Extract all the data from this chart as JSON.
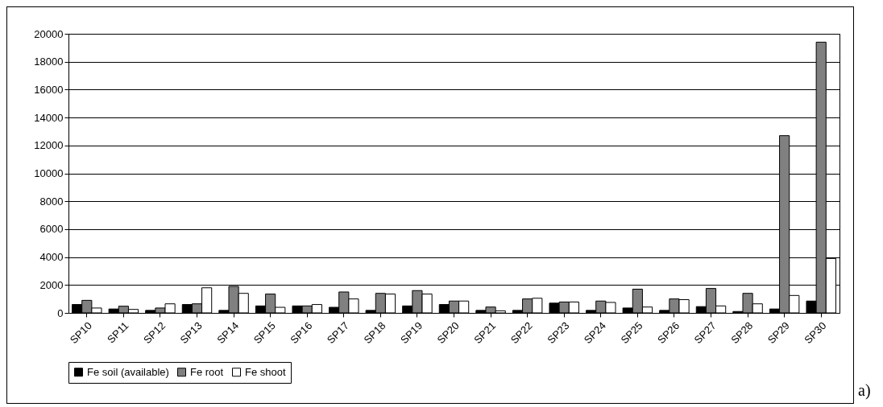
{
  "chart_data": {
    "type": "bar",
    "categories": [
      "SP10",
      "SP11",
      "SP12",
      "SP13",
      "SP14",
      "SP15",
      "SP16",
      "SP17",
      "SP18",
      "SP19",
      "SP20",
      "SP21",
      "SP22",
      "SP23",
      "SP24",
      "SP25",
      "SP26",
      "SP27",
      "SP28",
      "SP29",
      "SP30"
    ],
    "series": [
      {
        "name": "Fe soil (available)",
        "color": "#000000",
        "values": [
          600,
          280,
          180,
          600,
          180,
          500,
          500,
          400,
          180,
          500,
          600,
          180,
          180,
          700,
          180,
          350,
          180,
          450,
          100,
          280,
          850
        ]
      },
      {
        "name": "Fe root",
        "color": "#808080",
        "values": [
          900,
          480,
          350,
          650,
          1900,
          1350,
          500,
          1500,
          1400,
          1600,
          850,
          420,
          1000,
          780,
          850,
          1700,
          1000,
          1750,
          1400,
          12700,
          19400
        ]
      },
      {
        "name": "Fe shoot",
        "color": "#ffffff",
        "values": [
          350,
          250,
          650,
          1800,
          1400,
          400,
          600,
          1000,
          1350,
          1350,
          850,
          150,
          1050,
          780,
          750,
          420,
          950,
          500,
          650,
          1250,
          3900
        ]
      }
    ],
    "ylim": [
      0,
      20000
    ],
    "yticks": [
      0,
      2000,
      4000,
      6000,
      8000,
      10000,
      12000,
      14000,
      16000,
      18000,
      20000
    ],
    "grid": "y",
    "legend": "bottom",
    "annotations": [
      "a)"
    ]
  }
}
